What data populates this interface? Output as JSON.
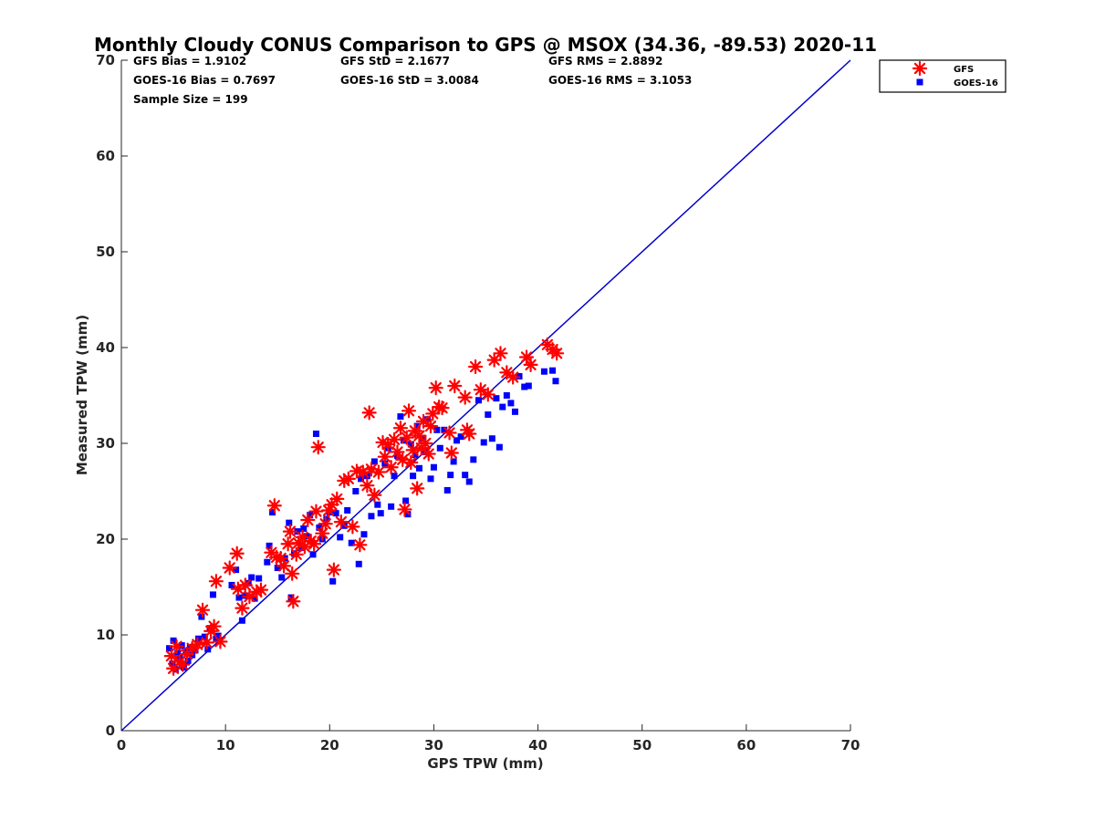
{
  "chart_data": {
    "type": "scatter",
    "title": "Monthly Cloudy CONUS Comparison to GPS @ MSOX (34.36, -89.53) 2020-11",
    "xlabel": "GPS TPW (mm)",
    "ylabel": "Measured TPW (mm)",
    "xlim": [
      0,
      70
    ],
    "ylim": [
      0,
      70
    ],
    "xticks": [
      "0",
      "10",
      "20",
      "30",
      "40",
      "50",
      "60",
      "70"
    ],
    "yticks": [
      "0",
      "10",
      "20",
      "30",
      "40",
      "50",
      "60",
      "70"
    ],
    "grid": false,
    "legend_position": "top-right",
    "stats": {
      "gfs_bias": "GFS Bias = 1.9102",
      "gfs_std": "GFS StD = 2.1677",
      "gfs_rms": "GFS RMS = 2.8892",
      "goes_bias": "GOES-16 Bias = 0.7697",
      "goes_std": "GOES-16 StD = 3.0084",
      "goes_rms": "GOES-16 RMS = 3.1053",
      "sample_size": "Sample Size = 199"
    },
    "reference_line": {
      "x": [
        0,
        70
      ],
      "y": [
        0,
        70
      ],
      "color": "#0000cc"
    },
    "series": [
      {
        "name": "GFS",
        "marker": "asterisk",
        "color": "#ff0000",
        "points": [
          [
            4.8,
            7.8
          ],
          [
            5.0,
            6.5
          ],
          [
            5.3,
            8.8
          ],
          [
            5.6,
            7.2
          ],
          [
            5.9,
            6.9
          ],
          [
            6.3,
            8.0
          ],
          [
            6.8,
            8.6
          ],
          [
            7.3,
            9.0
          ],
          [
            7.8,
            12.6
          ],
          [
            8.2,
            9.2
          ],
          [
            8.6,
            10.4
          ],
          [
            8.9,
            10.9
          ],
          [
            9.1,
            15.6
          ],
          [
            9.5,
            9.3
          ],
          [
            10.4,
            17.0
          ],
          [
            11.1,
            18.5
          ],
          [
            11.2,
            14.8
          ],
          [
            11.6,
            12.8
          ],
          [
            11.9,
            15.2
          ],
          [
            12.3,
            14.0
          ],
          [
            13.0,
            14.5
          ],
          [
            13.4,
            14.7
          ],
          [
            14.4,
            18.6
          ],
          [
            14.7,
            23.5
          ],
          [
            14.9,
            18.1
          ],
          [
            15.3,
            18.0
          ],
          [
            15.6,
            17.2
          ],
          [
            16.0,
            19.5
          ],
          [
            16.2,
            20.8
          ],
          [
            16.4,
            16.4
          ],
          [
            16.5,
            13.5
          ],
          [
            16.8,
            18.4
          ],
          [
            17.0,
            19.6
          ],
          [
            17.4,
            20.2
          ],
          [
            17.6,
            19.2
          ],
          [
            17.9,
            22.0
          ],
          [
            18.2,
            19.8
          ],
          [
            18.5,
            19.5
          ],
          [
            18.7,
            22.9
          ],
          [
            18.9,
            29.6
          ],
          [
            19.3,
            20.6
          ],
          [
            19.6,
            21.6
          ],
          [
            19.9,
            23.0
          ],
          [
            20.2,
            23.6
          ],
          [
            20.4,
            16.8
          ],
          [
            20.7,
            24.2
          ],
          [
            21.1,
            21.8
          ],
          [
            21.4,
            26.1
          ],
          [
            21.8,
            26.3
          ],
          [
            22.2,
            21.3
          ],
          [
            22.6,
            27.1
          ],
          [
            22.9,
            19.4
          ],
          [
            23.2,
            27.0
          ],
          [
            23.6,
            25.6
          ],
          [
            23.8,
            33.2
          ],
          [
            24.0,
            27.3
          ],
          [
            24.3,
            24.6
          ],
          [
            24.7,
            27.0
          ],
          [
            25.1,
            30.1
          ],
          [
            25.3,
            28.6
          ],
          [
            25.6,
            29.9
          ],
          [
            25.9,
            27.5
          ],
          [
            26.2,
            30.4
          ],
          [
            26.5,
            29.1
          ],
          [
            26.8,
            31.6
          ],
          [
            27.0,
            28.3
          ],
          [
            27.2,
            23.1
          ],
          [
            27.4,
            30.6
          ],
          [
            27.6,
            33.4
          ],
          [
            27.8,
            28.0
          ],
          [
            28.0,
            29.3
          ],
          [
            28.2,
            31.3
          ],
          [
            28.4,
            25.3
          ],
          [
            28.6,
            30.8
          ],
          [
            28.8,
            29.5
          ],
          [
            29.0,
            32.3
          ],
          [
            29.2,
            30.0
          ],
          [
            29.5,
            28.9
          ],
          [
            29.7,
            31.8
          ],
          [
            29.9,
            33.1
          ],
          [
            30.2,
            35.8
          ],
          [
            30.5,
            33.8
          ],
          [
            30.8,
            33.7
          ],
          [
            31.5,
            31.1
          ],
          [
            31.7,
            29.0
          ],
          [
            32.0,
            36.0
          ],
          [
            33.0,
            34.8
          ],
          [
            33.2,
            31.4
          ],
          [
            33.4,
            31.0
          ],
          [
            34.0,
            38.0
          ],
          [
            34.5,
            35.6
          ],
          [
            35.2,
            35.1
          ],
          [
            35.8,
            38.7
          ],
          [
            36.4,
            39.4
          ],
          [
            37.0,
            37.4
          ],
          [
            37.6,
            36.9
          ],
          [
            38.9,
            39.0
          ],
          [
            39.3,
            38.2
          ],
          [
            40.9,
            40.3
          ],
          [
            41.4,
            39.8
          ],
          [
            41.8,
            39.4
          ]
        ]
      },
      {
        "name": "GOES-16",
        "marker": "square",
        "color": "#0000ff",
        "points": [
          [
            4.6,
            8.6
          ],
          [
            4.9,
            7.0
          ],
          [
            5.0,
            9.4
          ],
          [
            5.2,
            6.4
          ],
          [
            5.4,
            8.1
          ],
          [
            5.6,
            7.6
          ],
          [
            5.8,
            8.9
          ],
          [
            6.0,
            6.6
          ],
          [
            6.2,
            8.2
          ],
          [
            6.4,
            7.3
          ],
          [
            6.6,
            8.7
          ],
          [
            6.8,
            7.9
          ],
          [
            7.1,
            8.4
          ],
          [
            7.4,
            9.6
          ],
          [
            7.7,
            11.9
          ],
          [
            8.0,
            9.8
          ],
          [
            8.3,
            8.5
          ],
          [
            8.5,
            10.7
          ],
          [
            8.8,
            14.2
          ],
          [
            9.1,
            9.6
          ],
          [
            9.3,
            9.9
          ],
          [
            10.6,
            15.2
          ],
          [
            11.0,
            16.8
          ],
          [
            11.3,
            13.9
          ],
          [
            11.6,
            11.5
          ],
          [
            11.9,
            14.1
          ],
          [
            12.2,
            15.4
          ],
          [
            12.5,
            16.0
          ],
          [
            12.8,
            13.8
          ],
          [
            13.2,
            15.9
          ],
          [
            14.0,
            17.6
          ],
          [
            14.2,
            19.3
          ],
          [
            14.5,
            22.8
          ],
          [
            15.0,
            17.0
          ],
          [
            15.4,
            16.0
          ],
          [
            15.7,
            18.0
          ],
          [
            16.1,
            21.7
          ],
          [
            16.3,
            13.9
          ],
          [
            16.6,
            18.5
          ],
          [
            16.9,
            20.8
          ],
          [
            17.2,
            19.1
          ],
          [
            17.5,
            21.1
          ],
          [
            17.8,
            20.3
          ],
          [
            18.1,
            22.5
          ],
          [
            18.4,
            18.4
          ],
          [
            18.7,
            31.0
          ],
          [
            19.0,
            21.2
          ],
          [
            19.3,
            20.0
          ],
          [
            19.7,
            22.1
          ],
          [
            20.0,
            22.8
          ],
          [
            20.3,
            15.6
          ],
          [
            20.6,
            22.7
          ],
          [
            21.0,
            20.2
          ],
          [
            21.4,
            21.4
          ],
          [
            21.7,
            23.0
          ],
          [
            22.1,
            19.6
          ],
          [
            22.5,
            25.0
          ],
          [
            22.8,
            17.4
          ],
          [
            23.0,
            26.3
          ],
          [
            23.3,
            20.5
          ],
          [
            23.6,
            26.6
          ],
          [
            24.0,
            22.4
          ],
          [
            24.3,
            28.1
          ],
          [
            24.6,
            23.6
          ],
          [
            24.9,
            22.7
          ],
          [
            25.3,
            27.9
          ],
          [
            25.6,
            29.5
          ],
          [
            25.9,
            23.4
          ],
          [
            26.2,
            26.6
          ],
          [
            26.5,
            28.7
          ],
          [
            26.8,
            32.8
          ],
          [
            27.1,
            30.3
          ],
          [
            27.3,
            24.0
          ],
          [
            27.5,
            22.6
          ],
          [
            27.8,
            29.9
          ],
          [
            28.0,
            26.6
          ],
          [
            28.2,
            28.8
          ],
          [
            28.4,
            31.8
          ],
          [
            28.6,
            27.4
          ],
          [
            28.9,
            30.5
          ],
          [
            29.1,
            29.1
          ],
          [
            29.4,
            32.5
          ],
          [
            29.7,
            26.3
          ],
          [
            30.0,
            27.5
          ],
          [
            30.3,
            31.4
          ],
          [
            30.6,
            29.5
          ],
          [
            31.0,
            31.4
          ],
          [
            31.3,
            25.1
          ],
          [
            31.6,
            26.7
          ],
          [
            31.9,
            28.1
          ],
          [
            32.2,
            30.3
          ],
          [
            32.6,
            30.7
          ],
          [
            33.0,
            26.7
          ],
          [
            33.4,
            26.0
          ],
          [
            33.8,
            28.3
          ],
          [
            34.3,
            34.5
          ],
          [
            34.8,
            30.1
          ],
          [
            35.2,
            33.0
          ],
          [
            35.6,
            30.5
          ],
          [
            36.0,
            34.7
          ],
          [
            36.3,
            29.6
          ],
          [
            36.6,
            33.8
          ],
          [
            37.0,
            35.0
          ],
          [
            37.4,
            34.2
          ],
          [
            37.8,
            33.3
          ],
          [
            38.2,
            37.0
          ],
          [
            38.7,
            35.9
          ],
          [
            39.1,
            36.0
          ],
          [
            40.6,
            37.5
          ],
          [
            41.4,
            37.6
          ],
          [
            41.7,
            36.5
          ]
        ]
      }
    ]
  }
}
